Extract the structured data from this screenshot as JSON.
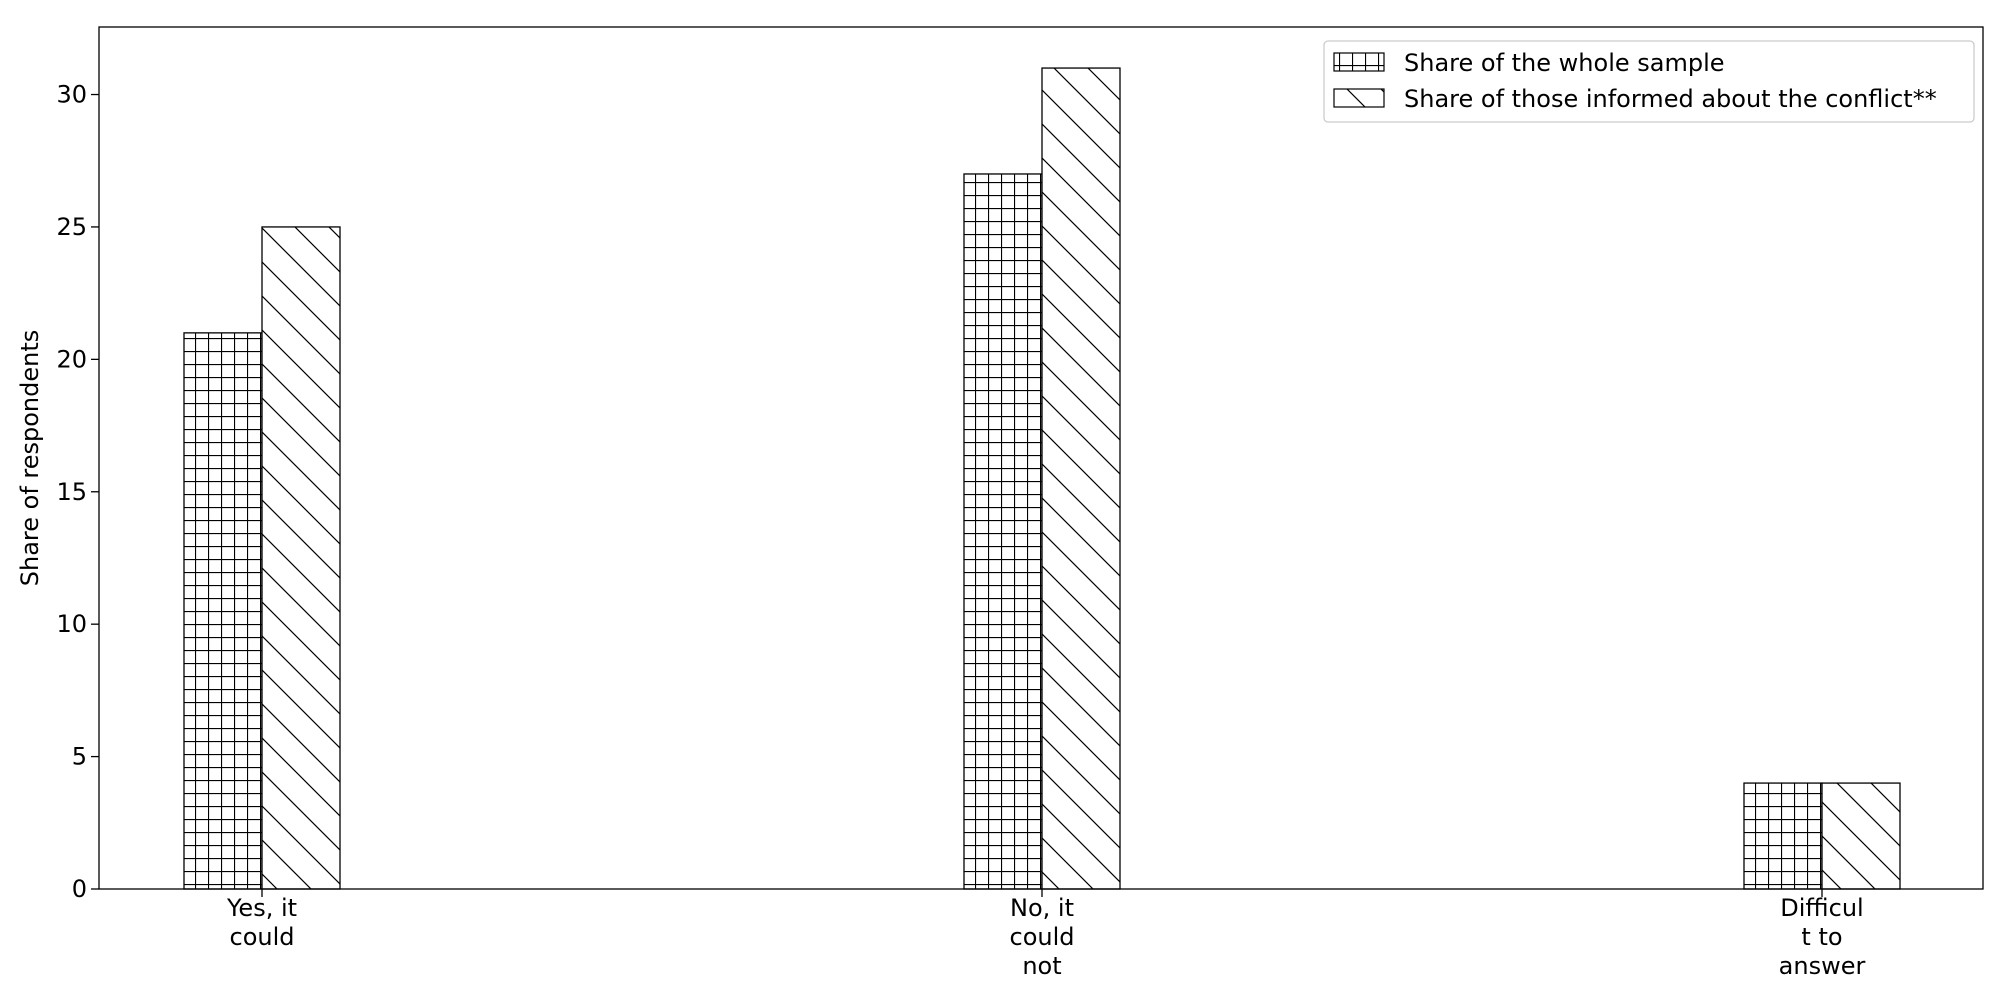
{
  "chart_data": {
    "type": "bar",
    "title": "",
    "xlabel": "",
    "ylabel": "Share of respondents",
    "categories": [
      [
        "Yes, it",
        "could"
      ],
      [
        "No, it",
        "could",
        "not"
      ],
      [
        "Difficul",
        "t to",
        "answer"
      ]
    ],
    "series": [
      {
        "name": "Share of the whole sample",
        "values": [
          21,
          27,
          4
        ],
        "hatch": "grid"
      },
      {
        "name": "Share of those informed about the conflict**",
        "values": [
          25,
          31,
          4
        ],
        "hatch": "backslash"
      }
    ],
    "ylim": [
      0,
      32.55
    ],
    "yticks": [
      0,
      5,
      10,
      15,
      20,
      25,
      30
    ],
    "grid": false,
    "legend": "top-right",
    "colors": {
      "bar_fill": "#ffffff",
      "bar_edge": "#000000",
      "hatch": "#000000"
    }
  }
}
